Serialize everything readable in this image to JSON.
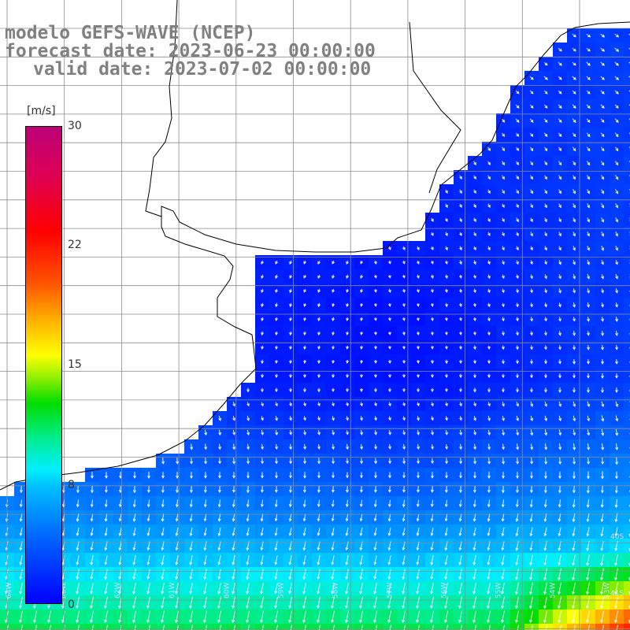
{
  "title": {
    "line1": "modelo GEFS-WAVE (NCEP)",
    "line2": "forecast date: 2023-06-23 00:00:00",
    "line3": "valid date: 2023-07-02 00:00:00"
  },
  "colorbar": {
    "unit": "[m/s]",
    "ticks": [
      "30",
      "22",
      "15",
      "8",
      "0"
    ],
    "tick_values": [
      30,
      22,
      15,
      8,
      0
    ],
    "range": [
      0,
      30
    ],
    "colors": [
      "#0000ff",
      "#0066ff",
      "#00bbff",
      "#00eeff",
      "#00ee99",
      "#00dd00",
      "#88ee00",
      "#ffff00",
      "#ffaa00",
      "#ff5500",
      "#ff0000",
      "#dd0055",
      "#bb0077"
    ]
  },
  "map": {
    "grid_on": true,
    "coastline_color": "#000000",
    "grid_color": "#8c8c8c",
    "arrow_color": "#ffffff",
    "lat_labels": [
      "40S",
      "41S"
    ],
    "lon_labels": [
      "64W",
      "63W",
      "62W",
      "61W",
      "60W",
      "59W",
      "58W",
      "57W",
      "56W",
      "55W",
      "54W",
      "53W"
    ]
  }
}
